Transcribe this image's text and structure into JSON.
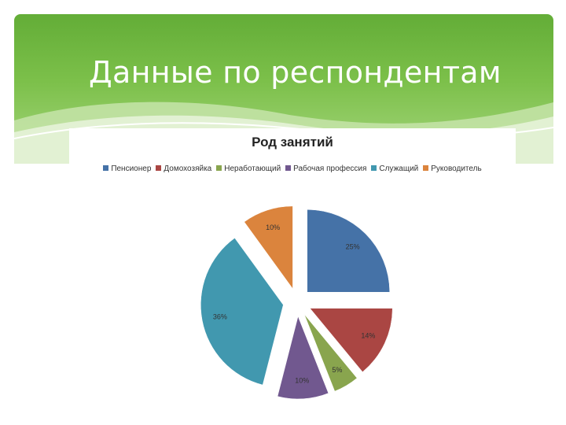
{
  "slide": {
    "title": "Данные по респондентам"
  },
  "chart_data": {
    "type": "pie",
    "title": "Род занятий",
    "legend_position": "top",
    "categories": [
      "Пенсионер",
      "Домохозяйка",
      "Неработающий",
      "Рабочая профессия",
      "Служащий",
      "Руководитель"
    ],
    "values": [
      25,
      14,
      5,
      10,
      36,
      10
    ],
    "labels": [
      "25%",
      "14%",
      "5%",
      "10%",
      "36%",
      "10%"
    ],
    "colors": [
      "#4572a7",
      "#aa4643",
      "#89a54e",
      "#71588f",
      "#4198af",
      "#db843d"
    ],
    "exploded": true
  }
}
